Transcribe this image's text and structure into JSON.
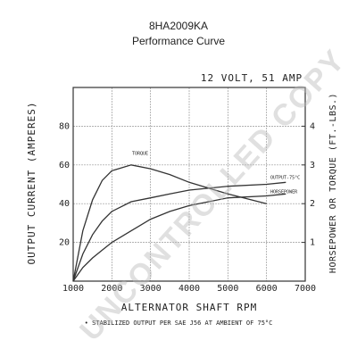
{
  "chart_data": {
    "type": "line",
    "title": "8HA2009KA",
    "subtitle": "Performance Curve",
    "rating": "12 VOLT, 51 AMP",
    "xlabel": "ALTERNATOR SHAFT RPM",
    "ylabel": "OUTPUT CURRENT (AMPERES)",
    "y2label": "HORSEPOWER OR TORQUE (FT.-LBS.)",
    "footnote": "• STABILIZED OUTPUT PER SAE J56 AT AMBIENT OF 75°C",
    "watermark": "UNCONTROLLED COPY",
    "x": [
      1000,
      1250,
      1500,
      1750,
      2000,
      2500,
      3000,
      3500,
      4000,
      5000,
      6000,
      6500
    ],
    "series": [
      {
        "name": "OUTPUT-75°C",
        "color": "#333333",
        "values": [
          0,
          14,
          24,
          31,
          36,
          41,
          43,
          45,
          47,
          49,
          50,
          51
        ]
      },
      {
        "name": "TORQUE",
        "color": "#333333",
        "axis": "y2",
        "values": [
          0,
          1.3,
          2.1,
          2.6,
          2.85,
          3.0,
          2.9,
          2.75,
          2.55,
          2.25,
          2.0,
          null
        ]
      },
      {
        "name": "HORSEPOWER",
        "color": "#333333",
        "axis": "y2",
        "values": [
          0,
          0.35,
          0.6,
          0.8,
          1.0,
          1.3,
          1.6,
          1.8,
          1.95,
          2.15,
          2.2,
          2.25
        ]
      }
    ],
    "xlim": [
      1000,
      7000
    ],
    "xticks": [
      1000,
      2000,
      3000,
      4000,
      5000,
      6000,
      7000
    ],
    "ylim": [
      0,
      100
    ],
    "yticks": [
      20,
      40,
      60,
      80
    ],
    "y2lim": [
      0,
      5
    ],
    "y2ticks": [
      1,
      2,
      3,
      4
    ],
    "grid": true
  }
}
